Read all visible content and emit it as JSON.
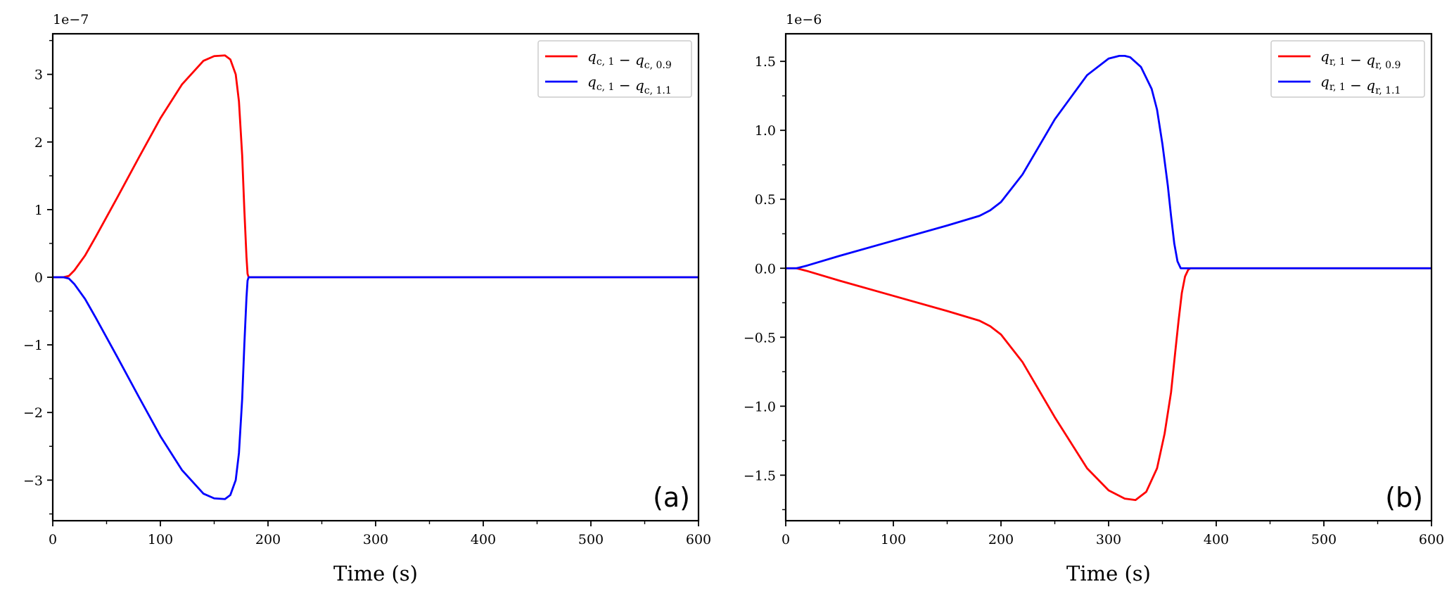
{
  "chart_data": [
    {
      "type": "line",
      "panel_label": "(a)",
      "xlabel": "Time (s)",
      "ylabel": "",
      "y_offset_label": "1e−7",
      "xlim": [
        0,
        600
      ],
      "ylim": [
        -3.6,
        3.6
      ],
      "xticks": [
        0,
        100,
        200,
        300,
        400,
        500,
        600
      ],
      "xtick_labels": [
        "0",
        "100",
        "200",
        "300",
        "400",
        "500",
        "600"
      ],
      "yticks": [
        -3,
        -2,
        -1,
        0,
        1,
        2,
        3
      ],
      "ytick_labels": [
        "−3",
        "−2",
        "−1",
        "0",
        "1",
        "2",
        "3"
      ],
      "y_scale_factor": "1e-7",
      "legend_position": "upper-right",
      "grid": false,
      "series": [
        {
          "name": "q_{c,1} − q_{c,0.9}",
          "legend": {
            "a": "q",
            "as": "c, 1",
            "b": "q",
            "bs": "c, 0.9"
          },
          "color": "#ff0000",
          "x": [
            0,
            10,
            15,
            20,
            30,
            40,
            60,
            80,
            100,
            120,
            140,
            150,
            160,
            165,
            170,
            173,
            176,
            178,
            180,
            181,
            182,
            200,
            300,
            400,
            500,
            600
          ],
          "y": [
            0,
            0,
            0.02,
            0.1,
            0.32,
            0.6,
            1.18,
            1.77,
            2.35,
            2.85,
            3.2,
            3.27,
            3.28,
            3.22,
            3.0,
            2.6,
            1.8,
            1.0,
            0.3,
            0.05,
            0,
            0,
            0,
            0,
            0,
            0
          ]
        },
        {
          "name": "q_{c,1} − q_{c,1.1}",
          "legend": {
            "a": "q",
            "as": "c, 1",
            "b": "q",
            "bs": "c, 1.1"
          },
          "color": "#0000ff",
          "x": [
            0,
            10,
            15,
            20,
            30,
            40,
            60,
            80,
            100,
            120,
            140,
            150,
            160,
            165,
            170,
            173,
            176,
            178,
            180,
            181,
            182,
            200,
            300,
            400,
            500,
            600
          ],
          "y": [
            0,
            0,
            -0.02,
            -0.1,
            -0.32,
            -0.6,
            -1.18,
            -1.77,
            -2.35,
            -2.85,
            -3.2,
            -3.27,
            -3.28,
            -3.22,
            -3.0,
            -2.6,
            -1.8,
            -1.0,
            -0.3,
            -0.05,
            0,
            0,
            0,
            0,
            0,
            0
          ]
        }
      ]
    },
    {
      "type": "line",
      "panel_label": "(b)",
      "xlabel": "Time (s)",
      "ylabel": "",
      "y_offset_label": "1e−6",
      "xlim": [
        0,
        600
      ],
      "ylim": [
        -1.83,
        1.7
      ],
      "xticks": [
        0,
        100,
        200,
        300,
        400,
        500,
        600
      ],
      "xtick_labels": [
        "0",
        "100",
        "200",
        "300",
        "400",
        "500",
        "600"
      ],
      "yticks": [
        -1.5,
        -1.0,
        -0.5,
        0.0,
        0.5,
        1.0,
        1.5
      ],
      "ytick_labels": [
        "−1.5",
        "−1.0",
        "−0.5",
        "0.0",
        "0.5",
        "1.0",
        "1.5"
      ],
      "y_scale_factor": "1e-6",
      "legend_position": "upper-right",
      "grid": false,
      "series": [
        {
          "name": "q_{r,1} − q_{r,0.9}",
          "legend": {
            "a": "q",
            "as": "r, 1",
            "b": "q",
            "bs": "r, 0.9"
          },
          "color": "#ff0000",
          "x": [
            0,
            10,
            20,
            50,
            100,
            150,
            180,
            190,
            200,
            220,
            250,
            280,
            300,
            315,
            325,
            335,
            345,
            352,
            358,
            362,
            365,
            368,
            371,
            374,
            376,
            400,
            500,
            600
          ],
          "y": [
            0,
            0,
            -0.02,
            -0.09,
            -0.2,
            -0.31,
            -0.38,
            -0.42,
            -0.48,
            -0.68,
            -1.08,
            -1.45,
            -1.61,
            -1.67,
            -1.68,
            -1.62,
            -1.45,
            -1.2,
            -0.9,
            -0.6,
            -0.38,
            -0.18,
            -0.06,
            -0.01,
            0,
            0,
            0,
            0
          ]
        },
        {
          "name": "q_{r,1} − q_{r,1.1}",
          "legend": {
            "a": "q",
            "as": "r, 1",
            "b": "q",
            "bs": "r, 1.1"
          },
          "color": "#0000ff",
          "x": [
            0,
            10,
            20,
            50,
            100,
            150,
            180,
            190,
            200,
            220,
            250,
            280,
            300,
            310,
            315,
            320,
            330,
            340,
            345,
            350,
            355,
            358,
            361,
            364,
            367,
            370,
            400,
            500,
            600
          ],
          "y": [
            0,
            0,
            0.02,
            0.09,
            0.2,
            0.31,
            0.38,
            0.42,
            0.48,
            0.68,
            1.08,
            1.4,
            1.52,
            1.54,
            1.54,
            1.53,
            1.46,
            1.3,
            1.15,
            0.9,
            0.6,
            0.38,
            0.18,
            0.05,
            0,
            0,
            0,
            0,
            0
          ]
        }
      ]
    }
  ]
}
